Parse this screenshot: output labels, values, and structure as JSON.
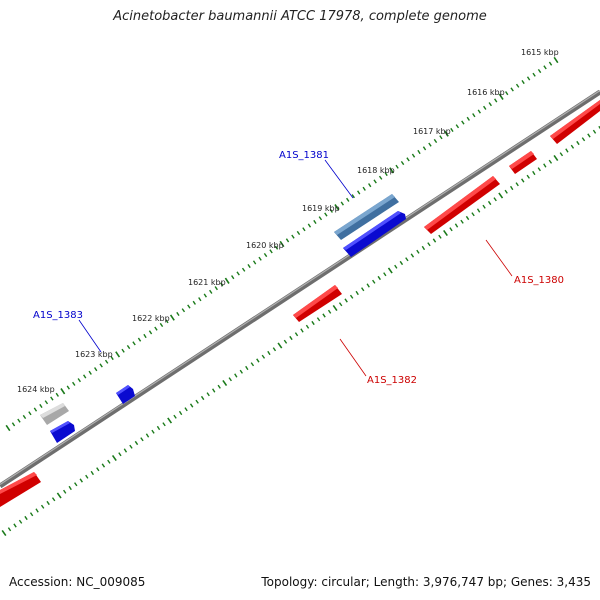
{
  "title": "Acinetobacter baumannii ATCC 17978, complete genome",
  "footer": {
    "accession": "Accession: NC_009085",
    "summary": "Topology: circular; Length: 3,976,747 bp; Genes: 3,435"
  },
  "scale_labels": [
    "1615 kbp",
    "1616 kbp",
    "1617 kbp",
    "1618 kbp",
    "1619 kbp",
    "1620 kbp",
    "1621 kbp",
    "1622 kbp",
    "1623 kbp",
    "1624 kbp"
  ],
  "genes": [
    {
      "name": "A1S_1381",
      "color": "#0000cc"
    },
    {
      "name": "A1S_1383",
      "color": "#0000cc"
    },
    {
      "name": "A1S_1380",
      "color": "#cc0000"
    },
    {
      "name": "A1S_1382",
      "color": "#cc0000"
    }
  ],
  "colors": {
    "backbone": "#888888",
    "tick": "#1a7a1a",
    "reverse_feature": "#e60000",
    "forward_feature": "#1010e0",
    "forward_rna": "#4a7fb0",
    "pseudo": "#bbbbbb"
  }
}
